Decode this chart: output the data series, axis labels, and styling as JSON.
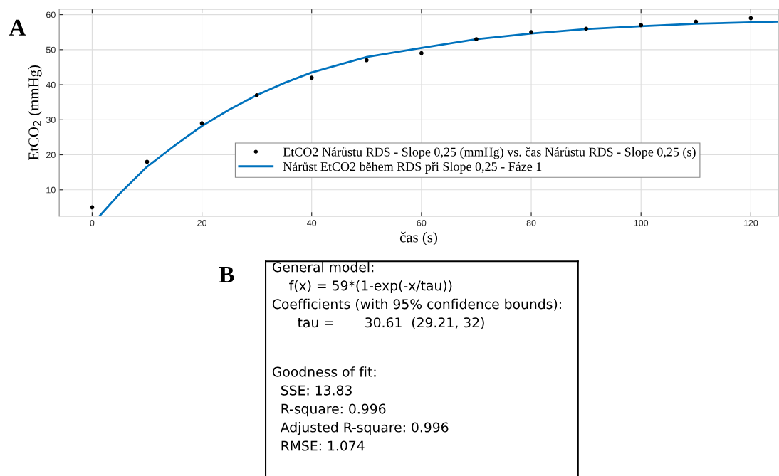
{
  "chart_data": [
    {
      "type": "scatter",
      "title": "A",
      "xlabel": "čas (s)",
      "ylabel": "EtCO$_{2}$ (mmHg)",
      "xlim": [
        -6,
        125
      ],
      "ylim": [
        2.5,
        61.6
      ],
      "xticks": [
        0,
        20,
        40,
        60,
        80,
        100,
        120
      ],
      "yticks": [
        10,
        20,
        30,
        40,
        50,
        60
      ],
      "grid": true,
      "legend": "right",
      "series": [
        {
          "name": "EtCO2 Nárůstu RDS - Slope 0,25 (mmHg) vs. čas Nárůstu RDS - Slope 0,25 (s)",
          "type": "scatter",
          "marker": "circle",
          "color": "#000000",
          "x": [
            0,
            10,
            20,
            30,
            40,
            50,
            60,
            70,
            80,
            90,
            100,
            110,
            120
          ],
          "values": [
            5,
            18,
            29,
            37,
            42,
            47,
            49,
            53,
            55,
            56,
            57,
            58,
            59
          ]
        },
        {
          "name": "Nárůst EtCO2 během RDS při Slope 0,25 - Fáze 1",
          "type": "line",
          "line_style": "solid",
          "color": "#0072bd",
          "x": [
            1.4,
            5,
            10,
            15,
            20,
            25,
            30,
            35,
            40,
            50,
            60,
            70,
            80,
            90,
            100,
            110,
            120,
            125
          ],
          "values": [
            2.6,
            8.9,
            16.6,
            22.6,
            28.2,
            32.9,
            37.0,
            40.5,
            43.5,
            47.9,
            50.5,
            53.0,
            54.6,
            55.9,
            56.7,
            57.4,
            57.8,
            58.0
          ]
        }
      ]
    },
    {
      "type": "other",
      "title": "B",
      "annotations": [
        "General model:\n    f(x) = 59*(1-exp(-x/tau))\nCoefficients (with 95% confidence bounds):\n      tau =       30.61  (29.21, 32)",
        "Goodness of fit:\n  SSE: 13.83\n  R-square: 0.996\n  Adjusted R-square: 0.996\n  RMSE: 1.074"
      ]
    }
  ]
}
